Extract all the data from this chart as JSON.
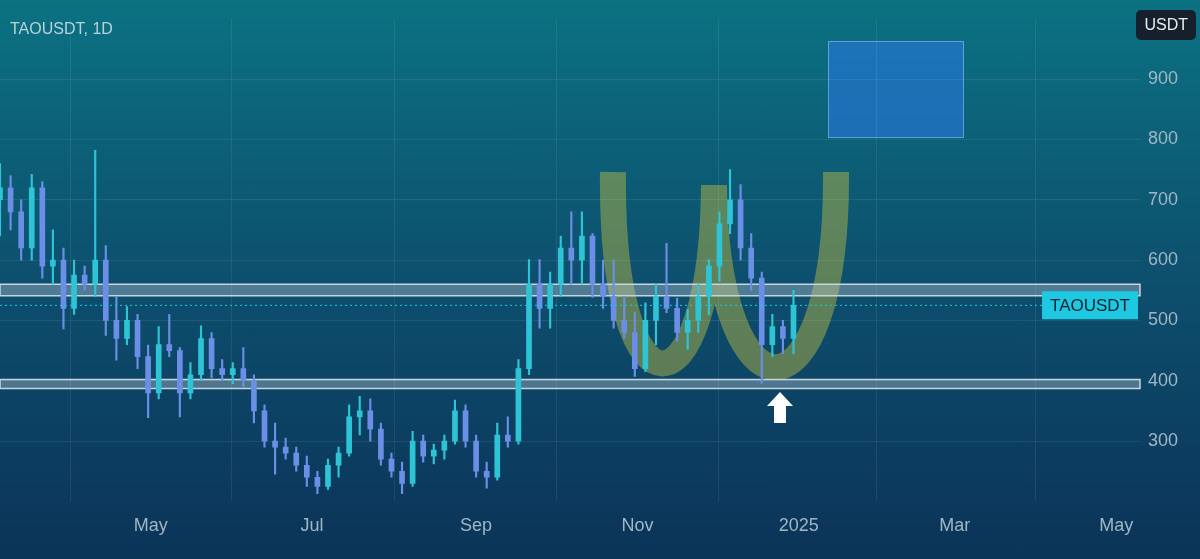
{
  "chart_data": {
    "type": "candlestick",
    "title": "TAOUSDT, 1D",
    "ylabel": "USDT",
    "x": [
      "2024-03-05",
      "2024-03-09",
      "2024-03-13",
      "2024-03-17",
      "2024-03-21",
      "2024-03-25",
      "2024-03-29",
      "2024-04-02",
      "2024-04-06",
      "2024-04-10",
      "2024-04-14",
      "2024-04-18",
      "2024-04-22",
      "2024-04-26",
      "2024-04-30",
      "2024-05-04",
      "2024-05-08",
      "2024-05-12",
      "2024-05-16",
      "2024-05-20",
      "2024-05-24",
      "2024-05-28",
      "2024-06-01",
      "2024-06-05",
      "2024-06-09",
      "2024-06-13",
      "2024-06-17",
      "2024-06-21",
      "2024-06-25",
      "2024-06-29",
      "2024-07-03",
      "2024-07-07",
      "2024-07-11",
      "2024-07-15",
      "2024-07-19",
      "2024-07-23",
      "2024-07-27",
      "2024-07-31",
      "2024-08-04",
      "2024-08-08",
      "2024-08-12",
      "2024-08-16",
      "2024-08-20",
      "2024-08-24",
      "2024-08-28",
      "2024-09-01",
      "2024-09-05",
      "2024-09-09",
      "2024-09-13",
      "2024-09-17",
      "2024-09-21",
      "2024-09-25",
      "2024-09-29",
      "2024-10-03",
      "2024-10-07",
      "2024-10-11",
      "2024-10-15",
      "2024-10-19",
      "2024-10-23",
      "2024-10-27",
      "2024-10-31",
      "2024-11-04",
      "2024-11-08",
      "2024-11-12",
      "2024-11-16",
      "2024-11-20",
      "2024-11-24",
      "2024-11-28",
      "2024-12-02",
      "2024-12-06",
      "2024-12-10",
      "2024-12-14",
      "2024-12-18",
      "2024-12-22",
      "2024-12-26",
      "2024-12-30"
    ],
    "ohlc": [
      [
        700,
        760,
        640,
        720
      ],
      [
        720,
        740,
        650,
        680
      ],
      [
        680,
        700,
        600,
        620
      ],
      [
        620,
        742,
        600,
        720
      ],
      [
        720,
        730,
        570,
        590
      ],
      [
        590,
        650,
        560,
        600
      ],
      [
        600,
        620,
        486,
        520
      ],
      [
        520,
        600,
        510,
        575
      ],
      [
        575,
        590,
        550,
        560
      ],
      [
        560,
        782,
        540,
        600
      ],
      [
        600,
        624,
        475,
        500
      ],
      [
        500,
        540,
        434,
        470
      ],
      [
        470,
        523,
        460,
        500
      ],
      [
        500,
        510,
        420,
        440
      ],
      [
        440,
        459,
        339,
        380
      ],
      [
        380,
        490,
        370,
        460
      ],
      [
        460,
        510,
        440,
        450
      ],
      [
        450,
        455,
        340,
        380
      ],
      [
        380,
        430,
        370,
        410
      ],
      [
        410,
        491,
        400,
        470
      ],
      [
        470,
        480,
        405,
        420
      ],
      [
        420,
        435,
        400,
        410
      ],
      [
        410,
        430,
        395,
        420
      ],
      [
        420,
        455,
        390,
        400
      ],
      [
        400,
        410,
        330,
        350
      ],
      [
        350,
        360,
        290,
        300
      ],
      [
        300,
        330,
        245,
        290
      ],
      [
        290,
        305,
        270,
        280
      ],
      [
        280,
        290,
        250,
        260
      ],
      [
        260,
        275,
        225,
        240
      ],
      [
        240,
        250,
        213,
        225
      ],
      [
        225,
        270,
        220,
        260
      ],
      [
        260,
        290,
        240,
        280
      ],
      [
        280,
        360,
        275,
        340
      ],
      [
        340,
        374,
        310,
        350
      ],
      [
        350,
        370,
        300,
        320
      ],
      [
        320,
        330,
        260,
        270
      ],
      [
        270,
        280,
        240,
        250
      ],
      [
        250,
        265,
        213,
        230
      ],
      [
        230,
        316,
        225,
        300
      ],
      [
        300,
        310,
        265,
        275
      ],
      [
        275,
        295,
        262,
        285
      ],
      [
        285,
        310,
        270,
        300
      ],
      [
        300,
        368,
        295,
        350
      ],
      [
        350,
        360,
        290,
        300
      ],
      [
        300,
        310,
        240,
        250
      ],
      [
        250,
        265,
        222,
        240
      ],
      [
        240,
        330,
        235,
        310
      ],
      [
        310,
        340,
        290,
        300
      ],
      [
        300,
        435,
        295,
        420
      ],
      [
        420,
        601,
        410,
        560
      ],
      [
        560,
        601,
        487,
        520
      ],
      [
        520,
        580,
        487,
        560
      ],
      [
        560,
        640,
        540,
        620
      ],
      [
        620,
        680,
        560,
        600
      ],
      [
        600,
        680,
        560,
        640
      ],
      [
        640,
        644,
        538,
        560
      ],
      [
        560,
        600,
        520,
        540
      ],
      [
        540,
        601,
        487,
        500
      ],
      [
        500,
        540,
        470,
        480
      ],
      [
        480,
        513,
        407,
        420
      ],
      [
        420,
        529,
        415,
        500
      ],
      [
        500,
        560,
        460,
        540
      ],
      [
        540,
        628,
        513,
        520
      ],
      [
        520,
        537,
        465,
        480
      ],
      [
        480,
        518,
        452,
        500
      ],
      [
        500,
        560,
        480,
        540
      ],
      [
        540,
        601,
        509,
        590
      ],
      [
        590,
        680,
        565,
        660
      ],
      [
        660,
        750,
        644,
        700
      ],
      [
        700,
        725,
        600,
        620
      ],
      [
        620,
        644,
        550,
        570
      ],
      [
        570,
        580,
        396,
        460
      ],
      [
        460,
        510,
        440,
        490
      ],
      [
        490,
        500,
        445,
        470
      ],
      [
        470,
        550,
        445,
        525
      ]
    ],
    "colors": [
      "#2ec4d6",
      "#6b8ee6",
      "#6b8ee6",
      "#2ec4d6",
      "#6b8ee6",
      "#2ec4d6",
      "#6b8ee6",
      "#2ec4d6",
      "#6b8ee6",
      "#2ec4d6",
      "#6b8ee6",
      "#6b8ee6",
      "#2ec4d6",
      "#6b8ee6",
      "#6b8ee6",
      "#2ec4d6",
      "#6b8ee6",
      "#6b8ee6",
      "#2ec4d6",
      "#2ec4d6",
      "#6b8ee6",
      "#6b8ee6",
      "#2ec4d6",
      "#6b8ee6",
      "#6b8ee6",
      "#6b8ee6",
      "#6b8ee6",
      "#6b8ee6",
      "#6b8ee6",
      "#6b8ee6",
      "#6b8ee6",
      "#2ec4d6",
      "#2ec4d6",
      "#2ec4d6",
      "#2ec4d6",
      "#6b8ee6",
      "#6b8ee6",
      "#6b8ee6",
      "#6b8ee6",
      "#2ec4d6",
      "#6b8ee6",
      "#2ec4d6",
      "#2ec4d6",
      "#2ec4d6",
      "#6b8ee6",
      "#6b8ee6",
      "#6b8ee6",
      "#2ec4d6",
      "#6b8ee6",
      "#2ec4d6",
      "#2ec4d6",
      "#6b8ee6",
      "#2ec4d6",
      "#2ec4d6",
      "#6b8ee6",
      "#2ec4d6",
      "#6b8ee6",
      "#6b8ee6",
      "#6b8ee6",
      "#6b8ee6",
      "#6b8ee6",
      "#2ec4d6",
      "#2ec4d6",
      "#6b8ee6",
      "#6b8ee6",
      "#2ec4d6",
      "#2ec4d6",
      "#2ec4d6",
      "#2ec4d6",
      "#2ec4d6",
      "#6b8ee6",
      "#6b8ee6",
      "#6b8ee6",
      "#2ec4d6",
      "#6b8ee6",
      "#2ec4d6"
    ],
    "xlim": [
      "2024-03-05",
      "2025-05-10"
    ],
    "xticks": [
      {
        "value": "2024-05-01",
        "label": "May"
      },
      {
        "value": "2024-07-01",
        "label": "Jul"
      },
      {
        "value": "2024-09-01",
        "label": "Sep"
      },
      {
        "value": "2024-11-01",
        "label": "Nov"
      },
      {
        "value": "2025-01-01",
        "label": "2025"
      },
      {
        "value": "2025-03-01",
        "label": "Mar"
      },
      {
        "value": "2025-05-01",
        "label": "May"
      }
    ],
    "ylim": [
      200,
      1000
    ],
    "yticks": [
      300,
      400,
      500,
      600,
      700,
      800,
      900
    ],
    "ref_lines": [
      {
        "axis": "y",
        "value": 525,
        "label": "TAOUSDT",
        "color": "#1ec8e0",
        "line_style": "dotted"
      }
    ],
    "bands": [
      {
        "axis": "y",
        "from": 541,
        "to": 560,
        "color": "#c8d4dc"
      },
      {
        "axis": "y",
        "from": 387,
        "to": 402,
        "color": "#c8d4dc"
      }
    ],
    "grid": true,
    "legend": false
  }
}
